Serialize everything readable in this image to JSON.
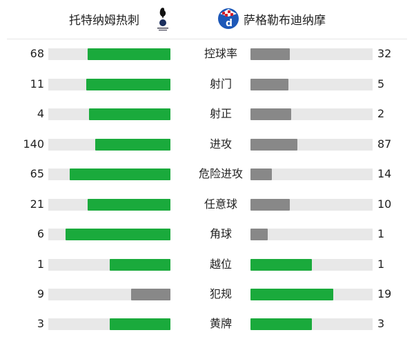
{
  "header": {
    "home_team": "托特纳姆热刺",
    "away_team": "萨格勒布迪纳摩",
    "home_logo": "tottenham-cockerel-crest",
    "away_logo": "dinamo-zagreb-crest"
  },
  "colors": {
    "leading": "#1aaa3c",
    "trailing": "#888888",
    "track": "#e8e8e8"
  },
  "stats": [
    {
      "label": "控球率",
      "home": 68,
      "away": 32
    },
    {
      "label": "射门",
      "home": 11,
      "away": 5
    },
    {
      "label": "射正",
      "home": 4,
      "away": 2
    },
    {
      "label": "进攻",
      "home": 140,
      "away": 87
    },
    {
      "label": "危险进攻",
      "home": 65,
      "away": 14
    },
    {
      "label": "任意球",
      "home": 21,
      "away": 10
    },
    {
      "label": "角球",
      "home": 6,
      "away": 1
    },
    {
      "label": "越位",
      "home": 1,
      "away": 1
    },
    {
      "label": "犯规",
      "home": 9,
      "away": 19
    },
    {
      "label": "黄牌",
      "home": 3,
      "away": 3
    }
  ]
}
